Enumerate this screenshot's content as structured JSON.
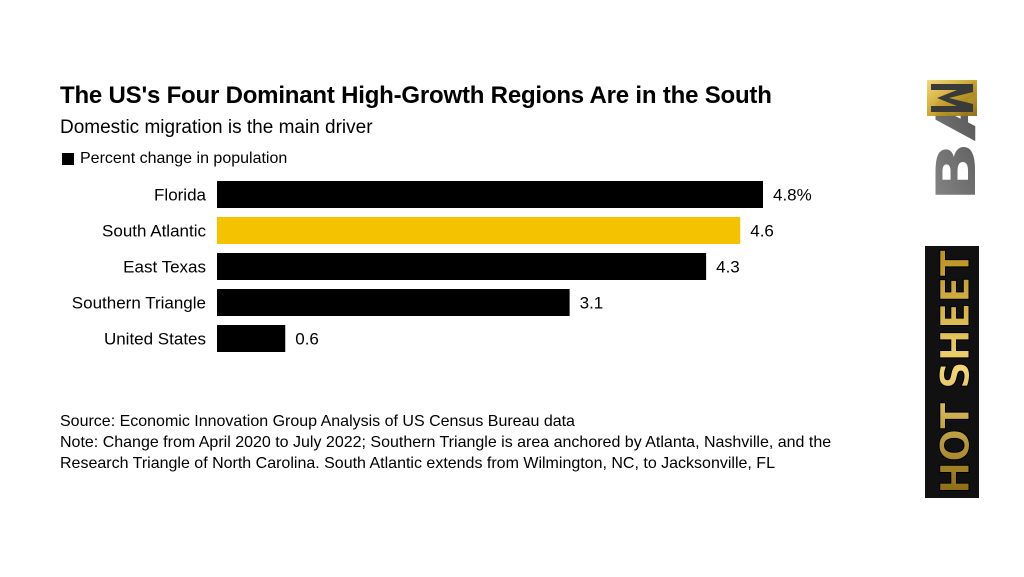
{
  "chart_data": {
    "type": "bar",
    "orientation": "horizontal",
    "title": "The US's Four Dominant High-Growth Regions Are in the South",
    "subtitle": "Domestic migration is the main driver",
    "legend": [
      {
        "label": "Percent change in population",
        "color": "#000000"
      }
    ],
    "categories": [
      "Florida",
      "South Atlantic",
      "East Texas",
      "Southern Triangle",
      "United States"
    ],
    "values": [
      4.8,
      4.6,
      4.3,
      3.1,
      0.6
    ],
    "value_labels": [
      "4.8%",
      "4.6",
      "4.3",
      "3.1",
      "0.6"
    ],
    "bar_colors": [
      "#000000",
      "#F5C200",
      "#000000",
      "#000000",
      "#000000"
    ],
    "xlim": [
      0,
      4.8
    ],
    "grid": false
  },
  "footnote": {
    "source": "Source: Economic Innovation Group Analysis of US Census Bureau data",
    "note": "Note: Change from April 2020 to July 2022; Southern Triangle is area anchored by Atlanta, Nashville, and the Research Triangle of North Carolina. South Atlantic extends from Wilmington, NC, to Jacksonville, FL"
  },
  "branding": {
    "logo_top_text": "BAM",
    "logo_bottom_text": "HOT SHEET",
    "gold_color": "#C9A227"
  }
}
